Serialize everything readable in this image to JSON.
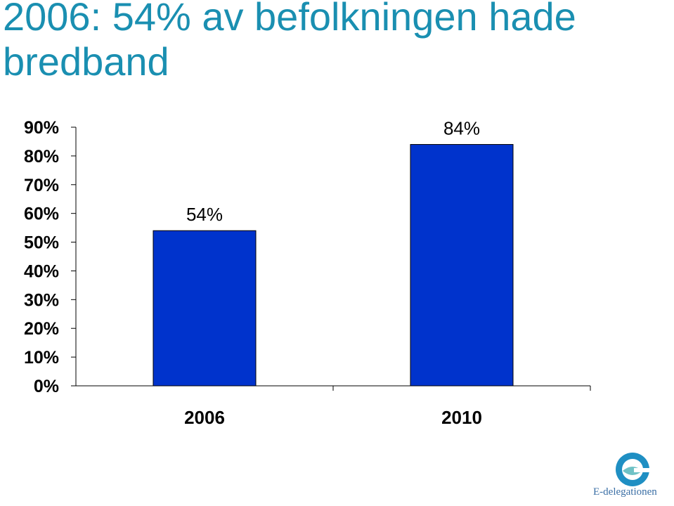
{
  "slide": {
    "title": "2006: 54% av befolkningen hade bredband"
  },
  "logo": {
    "icon": "e-swirl-icon",
    "text": "E-delegationen",
    "colors": {
      "outer": "#1f8fc3",
      "inner": "#6fc2c6"
    }
  },
  "chart_data": {
    "type": "bar",
    "title": "",
    "xlabel": "",
    "ylabel": "",
    "categories": [
      "2006",
      "2010"
    ],
    "values": [
      54,
      84
    ],
    "data_labels": [
      "54%",
      "84%"
    ],
    "ylim": [
      0,
      90
    ],
    "yticks": [
      {
        "value": 0,
        "label": "0%"
      },
      {
        "value": 10,
        "label": "10%"
      },
      {
        "value": 20,
        "label": "20%"
      },
      {
        "value": 30,
        "label": "30%"
      },
      {
        "value": 40,
        "label": "40%"
      },
      {
        "value": 50,
        "label": "50%"
      },
      {
        "value": 60,
        "label": "60%"
      },
      {
        "value": 70,
        "label": "70%"
      },
      {
        "value": 80,
        "label": "80%"
      },
      {
        "value": 90,
        "label": "90%"
      }
    ],
    "grid": false,
    "legend": "none",
    "bar_color": "#0033cc"
  }
}
